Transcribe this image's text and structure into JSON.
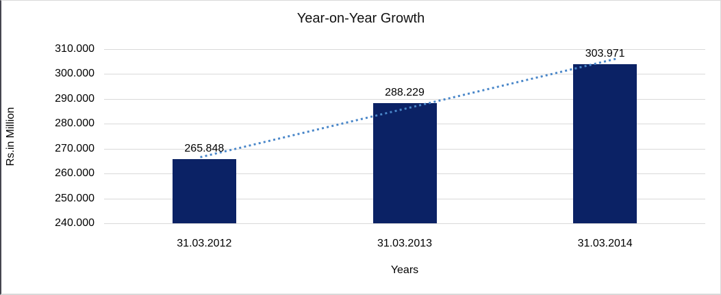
{
  "chart_data": {
    "type": "bar",
    "title": "Year-on-Year Growth",
    "categories": [
      "31.03.2012",
      "31.03.2013",
      "31.03.2014"
    ],
    "values": [
      265.848,
      288.229,
      303.971
    ],
    "value_labels": [
      "265.848",
      "288.229",
      "303.971"
    ],
    "xlabel": "Years",
    "ylabel": "Rs.in Million",
    "ylim": [
      240,
      310
    ],
    "ytick_step": 10,
    "ytick_labels": [
      "240.000",
      "250.000",
      "260.000",
      "270.000",
      "280.000",
      "290.000",
      "300.000",
      "310.000"
    ],
    "grid": true,
    "legend": "none",
    "bar_color": "#0b2265",
    "gridline_color": "#d9d9d9",
    "text_color": "#000000",
    "trendline": {
      "type": "linear",
      "style": "dotted",
      "color": "#4a87c9"
    },
    "frame_border_color": "#d9d9d9",
    "frame_left_edge_color": "#45454f"
  }
}
